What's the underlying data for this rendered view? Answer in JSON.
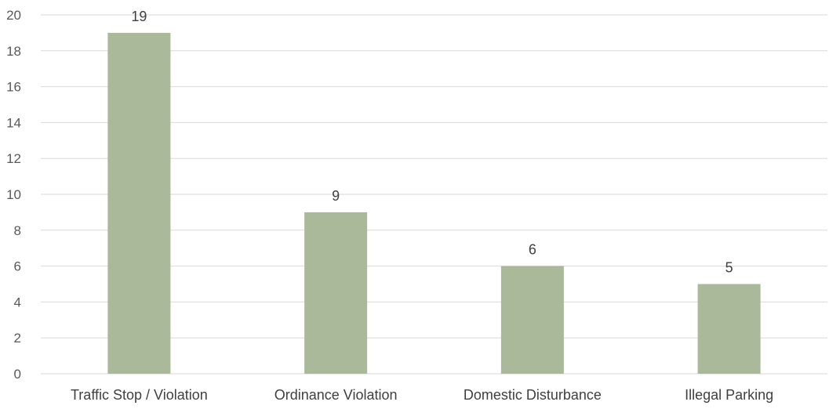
{
  "chart_data": {
    "type": "bar",
    "categories": [
      "Traffic Stop / Violation",
      "Ordinance Violation",
      "Domestic Disturbance",
      "Illegal Parking"
    ],
    "values": [
      19,
      9,
      6,
      5
    ],
    "data_labels": [
      "19",
      "9",
      "6",
      "5"
    ],
    "title": "",
    "xlabel": "",
    "ylabel": "",
    "ylim": [
      0,
      20
    ],
    "yticks": [
      0,
      2,
      4,
      6,
      8,
      10,
      12,
      14,
      16,
      18,
      20
    ],
    "grid": true,
    "legend": "none",
    "bar_color": "#a9b99a"
  }
}
